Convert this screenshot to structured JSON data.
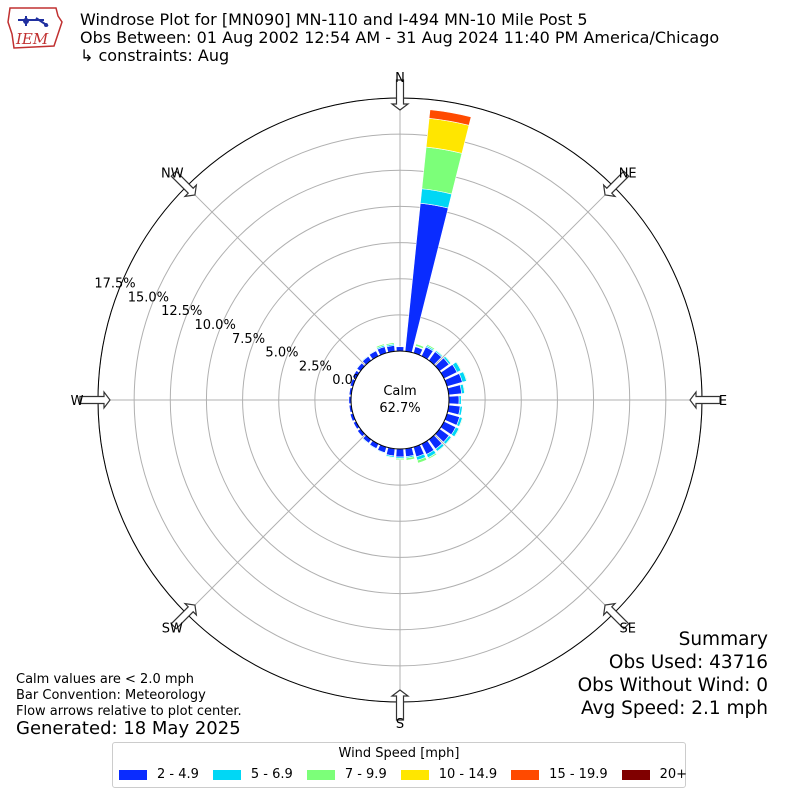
{
  "header": {
    "logo_text": "IEM",
    "title_line1": "Windrose Plot for [MN090] MN-110 and I-494 MN-10 Mile Post 5",
    "title_line2": "Obs Between: 01 Aug 2002 12:54 AM - 31 Aug 2024 11:40 PM America/Chicago",
    "title_line3": "↳ constraints: Aug"
  },
  "notes": {
    "line1": "Calm values are < 2.0 mph",
    "line2": "Bar Convention: Meteorology",
    "line3": "Flow arrows relative to plot center.",
    "generated": "Generated: 18 May 2025"
  },
  "summary": {
    "heading": "Summary",
    "obs_used": "Obs Used: 43716",
    "obs_without_wind": "Obs Without Wind: 0",
    "avg_speed": "Avg Speed: 2.1 mph"
  },
  "legend": {
    "title": "Wind Speed [mph]",
    "items": [
      {
        "label": "2 - 4.9",
        "color": "#0a2cff"
      },
      {
        "label": "5 - 6.9",
        "color": "#00d7f5"
      },
      {
        "label": "7 - 9.9",
        "color": "#7cff79"
      },
      {
        "label": "10 - 14.9",
        "color": "#ffe600"
      },
      {
        "label": "15 - 19.9",
        "color": "#ff4a00"
      },
      {
        "label": "20+",
        "color": "#800000"
      }
    ]
  },
  "chart_data": {
    "type": "windrose",
    "calm_label": "Calm",
    "calm_value": "62.7%",
    "radial_max": 17.5,
    "radial_ticks": [
      0.0,
      2.5,
      5.0,
      7.5,
      10.0,
      12.5,
      15.0,
      17.5
    ],
    "radial_tick_labels": [
      "0.0%",
      "2.5%",
      "5.0%",
      "7.5%",
      "10.0%",
      "12.5%",
      "15.0%",
      "17.5%"
    ],
    "directions": [
      "N",
      "NE",
      "E",
      "SE",
      "S",
      "SW",
      "W",
      "NW"
    ],
    "direction_angles": [
      0,
      45,
      90,
      135,
      180,
      225,
      270,
      315
    ],
    "sector_width_deg": 10,
    "series_names": [
      "2 - 4.9",
      "5 - 6.9",
      "7 - 9.9",
      "10 - 14.9",
      "15 - 19.9",
      "20+"
    ],
    "series_colors": [
      "#0a2cff",
      "#00d7f5",
      "#7cff79",
      "#ffe600",
      "#ff4a00",
      "#800000"
    ],
    "sectors": [
      {
        "dir": 0,
        "values": [
          0.3,
          0.0,
          0.0,
          0.0,
          0.0,
          0.0
        ]
      },
      {
        "dir": 10,
        "values": [
          10.3,
          1.0,
          2.9,
          2.0,
          0.6,
          0.0
        ]
      },
      {
        "dir": 20,
        "values": [
          0.45,
          0.05,
          0.15,
          0.0,
          0.0,
          0.0
        ]
      },
      {
        "dir": 30,
        "values": [
          0.7,
          0.1,
          0.1,
          0.0,
          0.0,
          0.0
        ]
      },
      {
        "dir": 40,
        "values": [
          0.75,
          0.1,
          0.05,
          0.0,
          0.0,
          0.0
        ]
      },
      {
        "dir": 50,
        "values": [
          0.8,
          0.15,
          0.05,
          0.0,
          0.0,
          0.0
        ]
      },
      {
        "dir": 60,
        "values": [
          1.0,
          0.3,
          0.05,
          0.0,
          0.0,
          0.0
        ]
      },
      {
        "dir": 70,
        "values": [
          1.1,
          0.3,
          0.05,
          0.0,
          0.0,
          0.0
        ]
      },
      {
        "dir": 80,
        "values": [
          0.9,
          0.2,
          0.05,
          0.0,
          0.0,
          0.0
        ]
      },
      {
        "dir": 90,
        "values": [
          0.7,
          0.15,
          0.0,
          0.0,
          0.0,
          0.0
        ]
      },
      {
        "dir": 100,
        "values": [
          0.8,
          0.15,
          0.0,
          0.0,
          0.0,
          0.0
        ]
      },
      {
        "dir": 110,
        "values": [
          0.9,
          0.2,
          0.05,
          0.0,
          0.0,
          0.0
        ]
      },
      {
        "dir": 120,
        "values": [
          0.9,
          0.25,
          0.05,
          0.0,
          0.0,
          0.0
        ]
      },
      {
        "dir": 130,
        "values": [
          0.8,
          0.2,
          0.05,
          0.0,
          0.0,
          0.0
        ]
      },
      {
        "dir": 140,
        "values": [
          0.8,
          0.2,
          0.05,
          0.0,
          0.0,
          0.0
        ]
      },
      {
        "dir": 150,
        "values": [
          0.8,
          0.25,
          0.1,
          0.0,
          0.0,
          0.0
        ]
      },
      {
        "dir": 160,
        "values": [
          0.7,
          0.25,
          0.2,
          0.0,
          0.0,
          0.0
        ]
      },
      {
        "dir": 170,
        "values": [
          0.55,
          0.1,
          0.15,
          0.0,
          0.0,
          0.0
        ]
      },
      {
        "dir": 180,
        "values": [
          0.55,
          0.1,
          0.1,
          0.0,
          0.0,
          0.0
        ]
      },
      {
        "dir": 190,
        "values": [
          0.5,
          0.1,
          0.05,
          0.0,
          0.0,
          0.0
        ]
      },
      {
        "dir": 200,
        "values": [
          0.4,
          0.05,
          0.0,
          0.0,
          0.0,
          0.0
        ]
      },
      {
        "dir": 210,
        "values": [
          0.35,
          0.05,
          0.0,
          0.0,
          0.0,
          0.0
        ]
      },
      {
        "dir": 220,
        "values": [
          0.3,
          0.05,
          0.0,
          0.0,
          0.0,
          0.0
        ]
      },
      {
        "dir": 230,
        "values": [
          0.25,
          0.0,
          0.0,
          0.0,
          0.0,
          0.0
        ]
      },
      {
        "dir": 240,
        "values": [
          0.2,
          0.0,
          0.0,
          0.0,
          0.0,
          0.0
        ]
      },
      {
        "dir": 250,
        "values": [
          0.2,
          0.0,
          0.0,
          0.0,
          0.0,
          0.0
        ]
      },
      {
        "dir": 260,
        "values": [
          0.15,
          0.0,
          0.0,
          0.0,
          0.0,
          0.0
        ]
      },
      {
        "dir": 270,
        "values": [
          0.15,
          0.0,
          0.0,
          0.0,
          0.0,
          0.0
        ]
      },
      {
        "dir": 280,
        "values": [
          0.15,
          0.0,
          0.0,
          0.0,
          0.0,
          0.0
        ]
      },
      {
        "dir": 290,
        "values": [
          0.2,
          0.0,
          0.0,
          0.0,
          0.0,
          0.0
        ]
      },
      {
        "dir": 300,
        "values": [
          0.25,
          0.0,
          0.0,
          0.0,
          0.0,
          0.0
        ]
      },
      {
        "dir": 310,
        "values": [
          0.3,
          0.05,
          0.0,
          0.0,
          0.0,
          0.0
        ]
      },
      {
        "dir": 320,
        "values": [
          0.35,
          0.05,
          0.0,
          0.0,
          0.0,
          0.0
        ]
      },
      {
        "dir": 330,
        "values": [
          0.4,
          0.05,
          0.05,
          0.0,
          0.0,
          0.0
        ]
      },
      {
        "dir": 340,
        "values": [
          0.45,
          0.1,
          0.1,
          0.0,
          0.0,
          0.0
        ]
      },
      {
        "dir": 350,
        "values": [
          0.4,
          0.1,
          0.1,
          0.0,
          0.0,
          0.0
        ]
      }
    ]
  }
}
